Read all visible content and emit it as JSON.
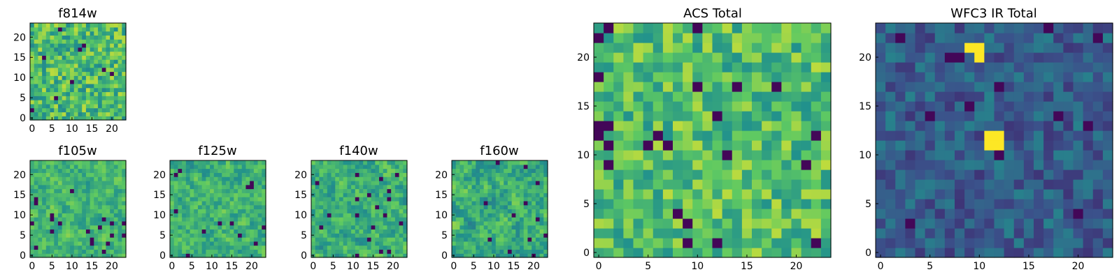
{
  "figure": {
    "description_type": "multi-panel image grid",
    "colormap": [
      "#440154",
      "#3b528b",
      "#21918c",
      "#5ec962",
      "#fde725"
    ]
  },
  "chart_data": [
    {
      "type": "heatmap",
      "title": "f814w",
      "grid": [
        24,
        24
      ],
      "xticks": [
        0,
        5,
        10,
        15,
        20
      ],
      "yticks": [
        0,
        5,
        10,
        15,
        20
      ],
      "mean": 0.68,
      "spread": 0.22,
      "smooth": 0,
      "seed": 11,
      "hot_pixels": []
    },
    {
      "type": "heatmap",
      "title": "f105w",
      "grid": [
        24,
        24
      ],
      "xticks": [
        0,
        5,
        10,
        15,
        20
      ],
      "yticks": [
        0,
        5,
        10,
        15,
        20
      ],
      "mean": 0.66,
      "spread": 0.24,
      "smooth": 1,
      "seed": 23,
      "hot_pixels": []
    },
    {
      "type": "heatmap",
      "title": "f125w",
      "grid": [
        24,
        24
      ],
      "xticks": [
        0,
        5,
        10,
        15,
        20
      ],
      "yticks": [
        0,
        5,
        10,
        15,
        20
      ],
      "mean": 0.64,
      "spread": 0.25,
      "smooth": 1,
      "seed": 37,
      "hot_pixels": []
    },
    {
      "type": "heatmap",
      "title": "f140w",
      "grid": [
        24,
        24
      ],
      "xticks": [
        0,
        5,
        10,
        15,
        20
      ],
      "yticks": [
        0,
        5,
        10,
        15,
        20
      ],
      "mean": 0.63,
      "spread": 0.26,
      "smooth": 1,
      "seed": 41,
      "hot_pixels": []
    },
    {
      "type": "heatmap",
      "title": "f160w",
      "grid": [
        24,
        24
      ],
      "xticks": [
        0,
        5,
        10,
        15,
        20
      ],
      "yticks": [
        0,
        5,
        10,
        15,
        20
      ],
      "mean": 0.62,
      "spread": 0.27,
      "smooth": 1,
      "seed": 53,
      "hot_pixels": []
    },
    {
      "type": "heatmap",
      "title": "ACS Total",
      "grid": [
        24,
        24
      ],
      "xticks": [
        0,
        5,
        10,
        15,
        20
      ],
      "yticks": [
        0,
        5,
        10,
        15,
        20
      ],
      "mean": 0.7,
      "spread": 0.2,
      "smooth": 0,
      "seed": 67,
      "hot_pixels": []
    },
    {
      "type": "heatmap",
      "title": "WFC3 IR Total",
      "grid": [
        24,
        24
      ],
      "xticks": [
        0,
        5,
        10,
        15,
        20
      ],
      "yticks": [
        0,
        5,
        10,
        15,
        20
      ],
      "mean": 0.3,
      "spread": 0.14,
      "smooth": 0,
      "seed": 79,
      "hot_pixels": [
        [
          11,
          11,
          1.0
        ],
        [
          12,
          11,
          1.0
        ],
        [
          11,
          12,
          1.0
        ],
        [
          12,
          12,
          1.0
        ],
        [
          9,
          21,
          1.0
        ],
        [
          10,
          21,
          1.0
        ],
        [
          10,
          20,
          1.0
        ]
      ]
    }
  ]
}
